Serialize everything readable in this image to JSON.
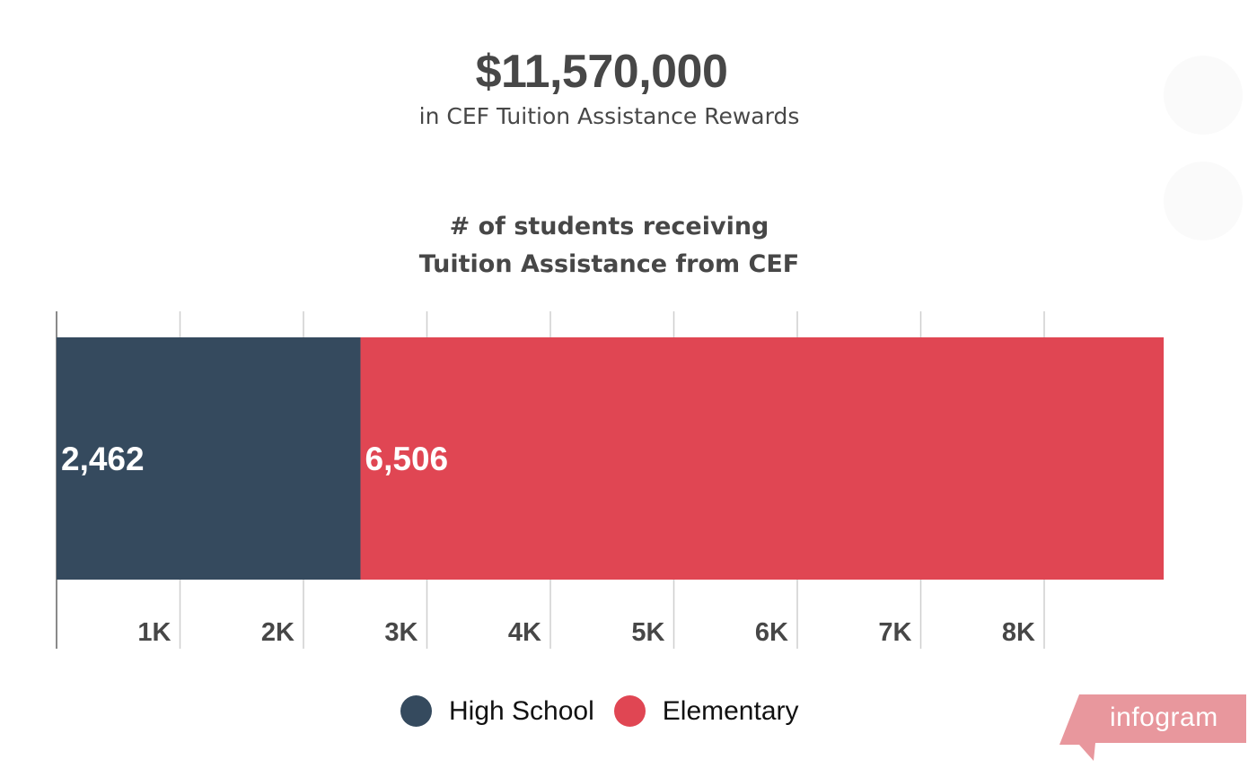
{
  "headline": {
    "amount": "$11,570,000",
    "caption": "in CEF Tuition Assistance Rewards"
  },
  "chart_data": {
    "type": "bar",
    "orientation": "horizontal",
    "stacked": true,
    "title_line1": "# of students receiving",
    "title_line2": "Tuition Assistance from CEF",
    "xlim": [
      0,
      9000
    ],
    "ticks": [
      1000,
      2000,
      3000,
      4000,
      5000,
      6000,
      7000,
      8000
    ],
    "tick_labels": [
      "1K",
      "2K",
      "3K",
      "4K",
      "5K",
      "6K",
      "7K",
      "8K"
    ],
    "grid": true,
    "legend_position": "bottom",
    "series": [
      {
        "name": "High School",
        "value": 2462,
        "label": "2,462",
        "color": "#354a5e"
      },
      {
        "name": "Elementary",
        "value": 6506,
        "label": "6,506",
        "color": "#e04653"
      }
    ]
  },
  "watermark": {
    "text": "infogram",
    "color": "#e8979d"
  }
}
